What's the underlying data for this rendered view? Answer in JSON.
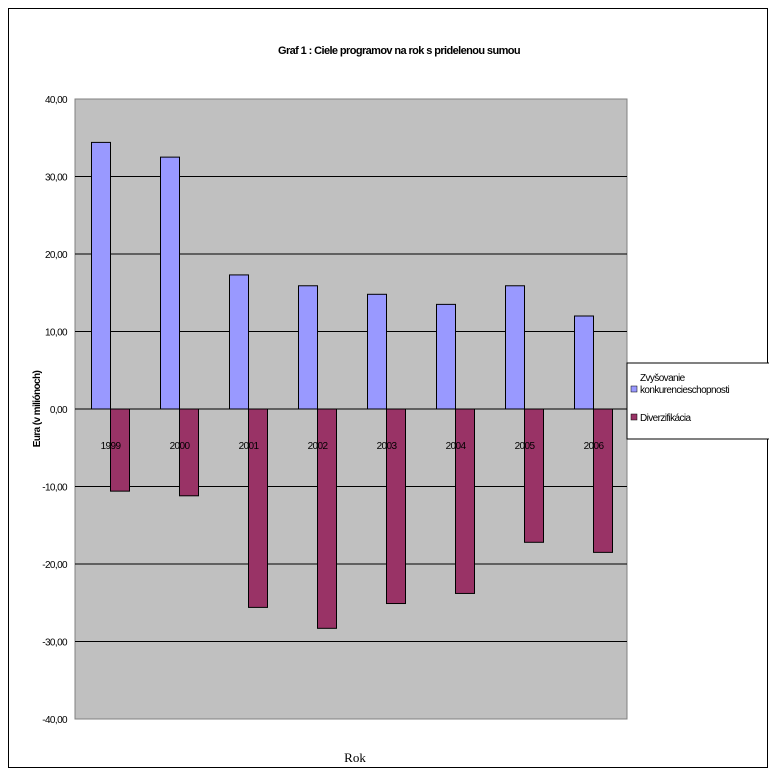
{
  "chart_data": {
    "type": "bar",
    "title": "Graf 1 : Ciele programov na rok s pridelenou sumou",
    "xlabel": "Rok",
    "ylabel": "Eura (v miliónoch)",
    "categories": [
      "1999",
      "2000",
      "2001",
      "2002",
      "2003",
      "2004",
      "2005",
      "2006"
    ],
    "series": [
      {
        "name": "Zvyšovanie konkurencieschopnosti",
        "color": "#9999ff",
        "values": [
          34.4,
          32.5,
          17.3,
          15.9,
          14.8,
          13.5,
          15.9,
          12.0
        ]
      },
      {
        "name": "Diverzifikácia",
        "color": "#993366",
        "values": [
          -10.6,
          -11.2,
          -25.6,
          -28.3,
          -25.1,
          -23.8,
          -17.2,
          -18.5
        ]
      }
    ],
    "ylim": [
      -40,
      40
    ],
    "yticks": [
      40,
      30,
      20,
      10,
      0,
      -10,
      -20,
      -30,
      -40
    ],
    "ytick_labels": [
      "40,00",
      "30,00",
      "20,00",
      "10,00",
      "0,00",
      "-10,00",
      "-20,00",
      "-30,00",
      "-40,00"
    ],
    "grid": true,
    "plot_background": "#c0c0c0",
    "legend_position": "right"
  }
}
